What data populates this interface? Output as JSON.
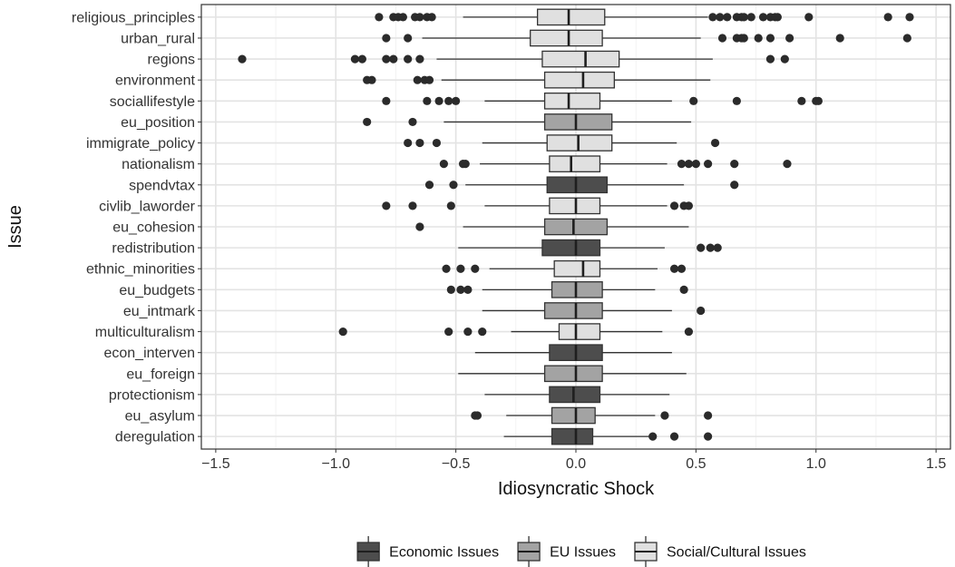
{
  "chart_data": {
    "type": "boxplot",
    "orientation": "horizontal",
    "xlabel": "Idiosyncratic Shock",
    "ylabel": "Issue",
    "xlim": [
      -1.56,
      1.56
    ],
    "xticks": [
      -1.5,
      -1.0,
      -0.5,
      0.0,
      0.5,
      1.0,
      1.5
    ],
    "xtick_labels": [
      "−1.5",
      "−1.0",
      "−0.5",
      "0.0",
      "0.5",
      "1.0",
      "1.5"
    ],
    "grid": true,
    "legend_position": "bottom",
    "groups": [
      {
        "key": "econ",
        "name": "Economic Issues",
        "color": "#4d4d4d"
      },
      {
        "key": "eu",
        "name": "EU Issues",
        "color": "#a3a3a3"
      },
      {
        "key": "social",
        "name": "Social/Cultural Issues",
        "color": "#e0e0e0"
      }
    ],
    "issues": [
      {
        "label": "religious_principles",
        "group": "social",
        "whisker_low": -0.47,
        "q1": -0.16,
        "median": -0.03,
        "q3": 0.12,
        "whisker_high": 0.55,
        "outliers": [
          -0.82,
          -0.76,
          -0.74,
          -0.72,
          -0.67,
          -0.65,
          -0.62,
          -0.6,
          0.57,
          0.6,
          0.63,
          0.67,
          0.69,
          0.7,
          0.73,
          0.78,
          0.81,
          0.83,
          0.84,
          0.97,
          1.3,
          1.39
        ]
      },
      {
        "label": "urban_rural",
        "group": "social",
        "whisker_low": -0.64,
        "q1": -0.19,
        "median": -0.03,
        "q3": 0.11,
        "whisker_high": 0.52,
        "outliers": [
          -0.79,
          -0.7,
          0.61,
          0.67,
          0.69,
          0.7,
          0.76,
          0.81,
          0.89,
          1.1,
          1.38
        ]
      },
      {
        "label": "regions",
        "group": "social",
        "whisker_low": -0.58,
        "q1": -0.14,
        "median": 0.04,
        "q3": 0.18,
        "whisker_high": 0.57,
        "outliers": [
          -1.39,
          -0.92,
          -0.89,
          -0.79,
          -0.76,
          -0.7,
          -0.65,
          0.81,
          0.87
        ]
      },
      {
        "label": "environment",
        "group": "social",
        "whisker_low": -0.56,
        "q1": -0.13,
        "median": 0.03,
        "q3": 0.16,
        "whisker_high": 0.56,
        "outliers": [
          -0.87,
          -0.85,
          -0.66,
          -0.63,
          -0.61
        ]
      },
      {
        "label": "sociallifestyle",
        "group": "social",
        "whisker_low": -0.38,
        "q1": -0.13,
        "median": -0.03,
        "q3": 0.1,
        "whisker_high": 0.4,
        "outliers": [
          -0.79,
          -0.62,
          -0.57,
          -0.53,
          -0.5,
          0.49,
          0.67,
          0.94,
          1.0,
          1.01
        ]
      },
      {
        "label": "eu_position",
        "group": "eu",
        "whisker_low": -0.55,
        "q1": -0.13,
        "median": 0.0,
        "q3": 0.15,
        "whisker_high": 0.48,
        "outliers": [
          -0.87,
          -0.68
        ]
      },
      {
        "label": "immigrate_policy",
        "group": "social",
        "whisker_low": -0.39,
        "q1": -0.12,
        "median": 0.01,
        "q3": 0.15,
        "whisker_high": 0.42,
        "outliers": [
          -0.7,
          -0.65,
          -0.58,
          0.58
        ]
      },
      {
        "label": "nationalism",
        "group": "social",
        "whisker_low": -0.4,
        "q1": -0.11,
        "median": -0.02,
        "q3": 0.1,
        "whisker_high": 0.38,
        "outliers": [
          -0.55,
          -0.47,
          -0.46,
          0.44,
          0.47,
          0.5,
          0.55,
          0.66,
          0.88
        ]
      },
      {
        "label": "spendvtax",
        "group": "econ",
        "whisker_low": -0.46,
        "q1": -0.12,
        "median": 0.0,
        "q3": 0.13,
        "whisker_high": 0.45,
        "outliers": [
          -0.61,
          -0.51,
          0.66
        ]
      },
      {
        "label": "civlib_laworder",
        "group": "social",
        "whisker_low": -0.38,
        "q1": -0.11,
        "median": 0.0,
        "q3": 0.1,
        "whisker_high": 0.38,
        "outliers": [
          -0.79,
          -0.68,
          -0.52,
          0.41,
          0.45,
          0.47
        ]
      },
      {
        "label": "eu_cohesion",
        "group": "eu",
        "whisker_low": -0.47,
        "q1": -0.13,
        "median": -0.01,
        "q3": 0.13,
        "whisker_high": 0.47,
        "outliers": [
          -0.65
        ]
      },
      {
        "label": "redistribution",
        "group": "econ",
        "whisker_low": -0.49,
        "q1": -0.14,
        "median": 0.0,
        "q3": 0.1,
        "whisker_high": 0.37,
        "outliers": [
          0.52,
          0.56,
          0.59
        ]
      },
      {
        "label": "ethnic_minorities",
        "group": "social",
        "whisker_low": -0.36,
        "q1": -0.09,
        "median": 0.03,
        "q3": 0.1,
        "whisker_high": 0.34,
        "outliers": [
          -0.54,
          -0.48,
          -0.42,
          0.41,
          0.44
        ]
      },
      {
        "label": "eu_budgets",
        "group": "eu",
        "whisker_low": -0.39,
        "q1": -0.1,
        "median": 0.0,
        "q3": 0.11,
        "whisker_high": 0.33,
        "outliers": [
          -0.52,
          -0.48,
          -0.45,
          0.45
        ]
      },
      {
        "label": "eu_intmark",
        "group": "eu",
        "whisker_low": -0.39,
        "q1": -0.13,
        "median": 0.0,
        "q3": 0.11,
        "whisker_high": 0.4,
        "outliers": [
          0.52
        ]
      },
      {
        "label": "multiculturalism",
        "group": "social",
        "whisker_low": -0.27,
        "q1": -0.07,
        "median": 0.0,
        "q3": 0.1,
        "whisker_high": 0.36,
        "outliers": [
          -0.97,
          -0.53,
          -0.45,
          -0.39,
          0.47
        ]
      },
      {
        "label": "econ_interven",
        "group": "econ",
        "whisker_low": -0.42,
        "q1": -0.11,
        "median": 0.0,
        "q3": 0.11,
        "whisker_high": 0.4,
        "outliers": []
      },
      {
        "label": "eu_foreign",
        "group": "eu",
        "whisker_low": -0.49,
        "q1": -0.13,
        "median": 0.0,
        "q3": 0.11,
        "whisker_high": 0.46,
        "outliers": []
      },
      {
        "label": "protectionism",
        "group": "econ",
        "whisker_low": -0.38,
        "q1": -0.11,
        "median": -0.01,
        "q3": 0.1,
        "whisker_high": 0.39,
        "outliers": []
      },
      {
        "label": "eu_asylum",
        "group": "eu",
        "whisker_low": -0.29,
        "q1": -0.1,
        "median": 0.0,
        "q3": 0.08,
        "whisker_high": 0.33,
        "outliers": [
          -0.42,
          -0.41,
          0.37,
          0.55
        ]
      },
      {
        "label": "deregulation",
        "group": "econ",
        "whisker_low": -0.3,
        "q1": -0.1,
        "median": 0.0,
        "q3": 0.07,
        "whisker_high": 0.31,
        "outliers": [
          0.32,
          0.41,
          0.55
        ]
      }
    ]
  }
}
